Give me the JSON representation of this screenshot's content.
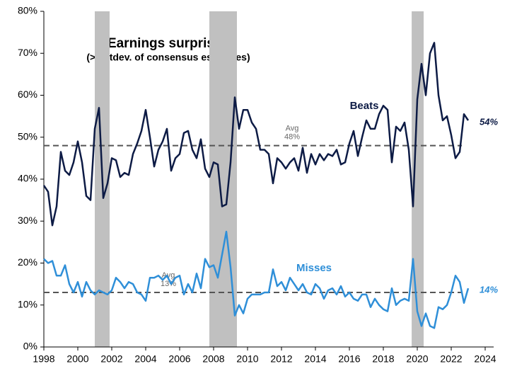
{
  "chart_data": {
    "type": "line",
    "title": "Earnings surprises",
    "subtitle": "(>1 stdev. of consensus estimates)",
    "x": [
      1998,
      1998.25,
      1998.5,
      1998.75,
      1999,
      1999.25,
      1999.5,
      1999.75,
      2000,
      2000.25,
      2000.5,
      2000.75,
      2001,
      2001.25,
      2001.5,
      2001.75,
      2002,
      2002.25,
      2002.5,
      2002.75,
      2003,
      2003.25,
      2003.5,
      2003.75,
      2004,
      2004.25,
      2004.5,
      2004.75,
      2005,
      2005.25,
      2005.5,
      2005.75,
      2006,
      2006.25,
      2006.5,
      2006.75,
      2007,
      2007.25,
      2007.5,
      2007.75,
      2008,
      2008.25,
      2008.5,
      2008.75,
      2009,
      2009.25,
      2009.5,
      2009.75,
      2010,
      2010.25,
      2010.5,
      2010.75,
      2011,
      2011.25,
      2011.5,
      2011.75,
      2012,
      2012.25,
      2012.5,
      2012.75,
      2013,
      2013.25,
      2013.5,
      2013.75,
      2014,
      2014.25,
      2014.5,
      2014.75,
      2015,
      2015.25,
      2015.5,
      2015.75,
      2016,
      2016.25,
      2016.5,
      2016.75,
      2017,
      2017.25,
      2017.5,
      2017.75,
      2018,
      2018.25,
      2018.5,
      2018.75,
      2019,
      2019.25,
      2019.5,
      2019.75,
      2020,
      2020.25,
      2020.5,
      2020.75,
      2021,
      2021.25,
      2021.5,
      2021.75,
      2022,
      2022.25,
      2022.5,
      2022.75,
      2023
    ],
    "series": [
      {
        "name": "Beats",
        "color": "#0d1b45",
        "end_label": "54%",
        "values": [
          38.5,
          37,
          29,
          33.5,
          46.5,
          42,
          41,
          44,
          49,
          44,
          36,
          35,
          52,
          57,
          35.5,
          39,
          45,
          44.5,
          40.5,
          41.5,
          41,
          46,
          48.5,
          51.5,
          56.5,
          50,
          43,
          47,
          49,
          52,
          42,
          45,
          46,
          51,
          51.5,
          47,
          45,
          49.5,
          42.5,
          40.5,
          44,
          43.5,
          33.5,
          34,
          44,
          59.5,
          52,
          56.5,
          56.5,
          53.5,
          52,
          47,
          47,
          46,
          39,
          45,
          44,
          42.5,
          44,
          45,
          42,
          47.5,
          41.5,
          46,
          43.5,
          46,
          44.5,
          46,
          45.5,
          47,
          43.5,
          44,
          48.5,
          51.5,
          45.5,
          50,
          54,
          52,
          52,
          55.5,
          57.5,
          56.5,
          44,
          52.5,
          51.5,
          53.5,
          47,
          33.5,
          59,
          67.5,
          60,
          70,
          72.5,
          60,
          54,
          55,
          50.5,
          45,
          46.5,
          55.5,
          54
        ]
      },
      {
        "name": "Misses",
        "color": "#2f8fd8",
        "end_label": "14%",
        "values": [
          21,
          20,
          20.5,
          17,
          17,
          19.5,
          15,
          13,
          15.5,
          12,
          15.5,
          13.5,
          12.5,
          13.5,
          13,
          12.5,
          13.5,
          16.5,
          15.5,
          14,
          15.5,
          15,
          13,
          12.5,
          11,
          16.5,
          16.5,
          17,
          16,
          17,
          15,
          16.5,
          17,
          12.5,
          15,
          13,
          17.5,
          14,
          21,
          19,
          19.5,
          16.5,
          22,
          27.5,
          19,
          7.5,
          10,
          8,
          11.5,
          12.5,
          12.5,
          12.5,
          13,
          13,
          18.5,
          14.5,
          15.5,
          13.5,
          16.5,
          15,
          13.5,
          15,
          13,
          12.5,
          15,
          14,
          11.5,
          13.5,
          14,
          12.5,
          14.5,
          12,
          13,
          11.5,
          11,
          12.5,
          12.5,
          9.5,
          11.5,
          10,
          9,
          8.5,
          14,
          10,
          11,
          11.5,
          11,
          21,
          8.5,
          5,
          8,
          5,
          4.5,
          9.5,
          9,
          10,
          13,
          17,
          15.5,
          10.5,
          14
        ]
      }
    ],
    "averages": [
      {
        "name": "Avg",
        "value": 48,
        "value_label": "48%"
      },
      {
        "name": "Avg",
        "value": 13,
        "value_label": "13%"
      }
    ],
    "shaded_periods": [
      [
        2001,
        2001.875
      ],
      [
        2007.75,
        2009.375
      ],
      [
        2019.67,
        2020.375
      ]
    ],
    "shade_color": "#c0c0c0",
    "xlim": [
      1998,
      2024.5
    ],
    "ylim": [
      0,
      80
    ],
    "xticks": [
      1998,
      2000,
      2002,
      2004,
      2006,
      2008,
      2010,
      2012,
      2014,
      2016,
      2018,
      2020,
      2022,
      2024
    ],
    "yticks": [
      {
        "value": 0,
        "label": "0%"
      },
      {
        "value": 10,
        "label": "10%"
      },
      {
        "value": 20,
        "label": "20%"
      },
      {
        "value": 30,
        "label": "30%"
      },
      {
        "value": 40,
        "label": "40%"
      },
      {
        "value": 50,
        "label": "50%"
      },
      {
        "value": 60,
        "label": "60%"
      },
      {
        "value": 70,
        "label": "70%"
      },
      {
        "value": 80,
        "label": "80%"
      }
    ],
    "grid": false
  }
}
